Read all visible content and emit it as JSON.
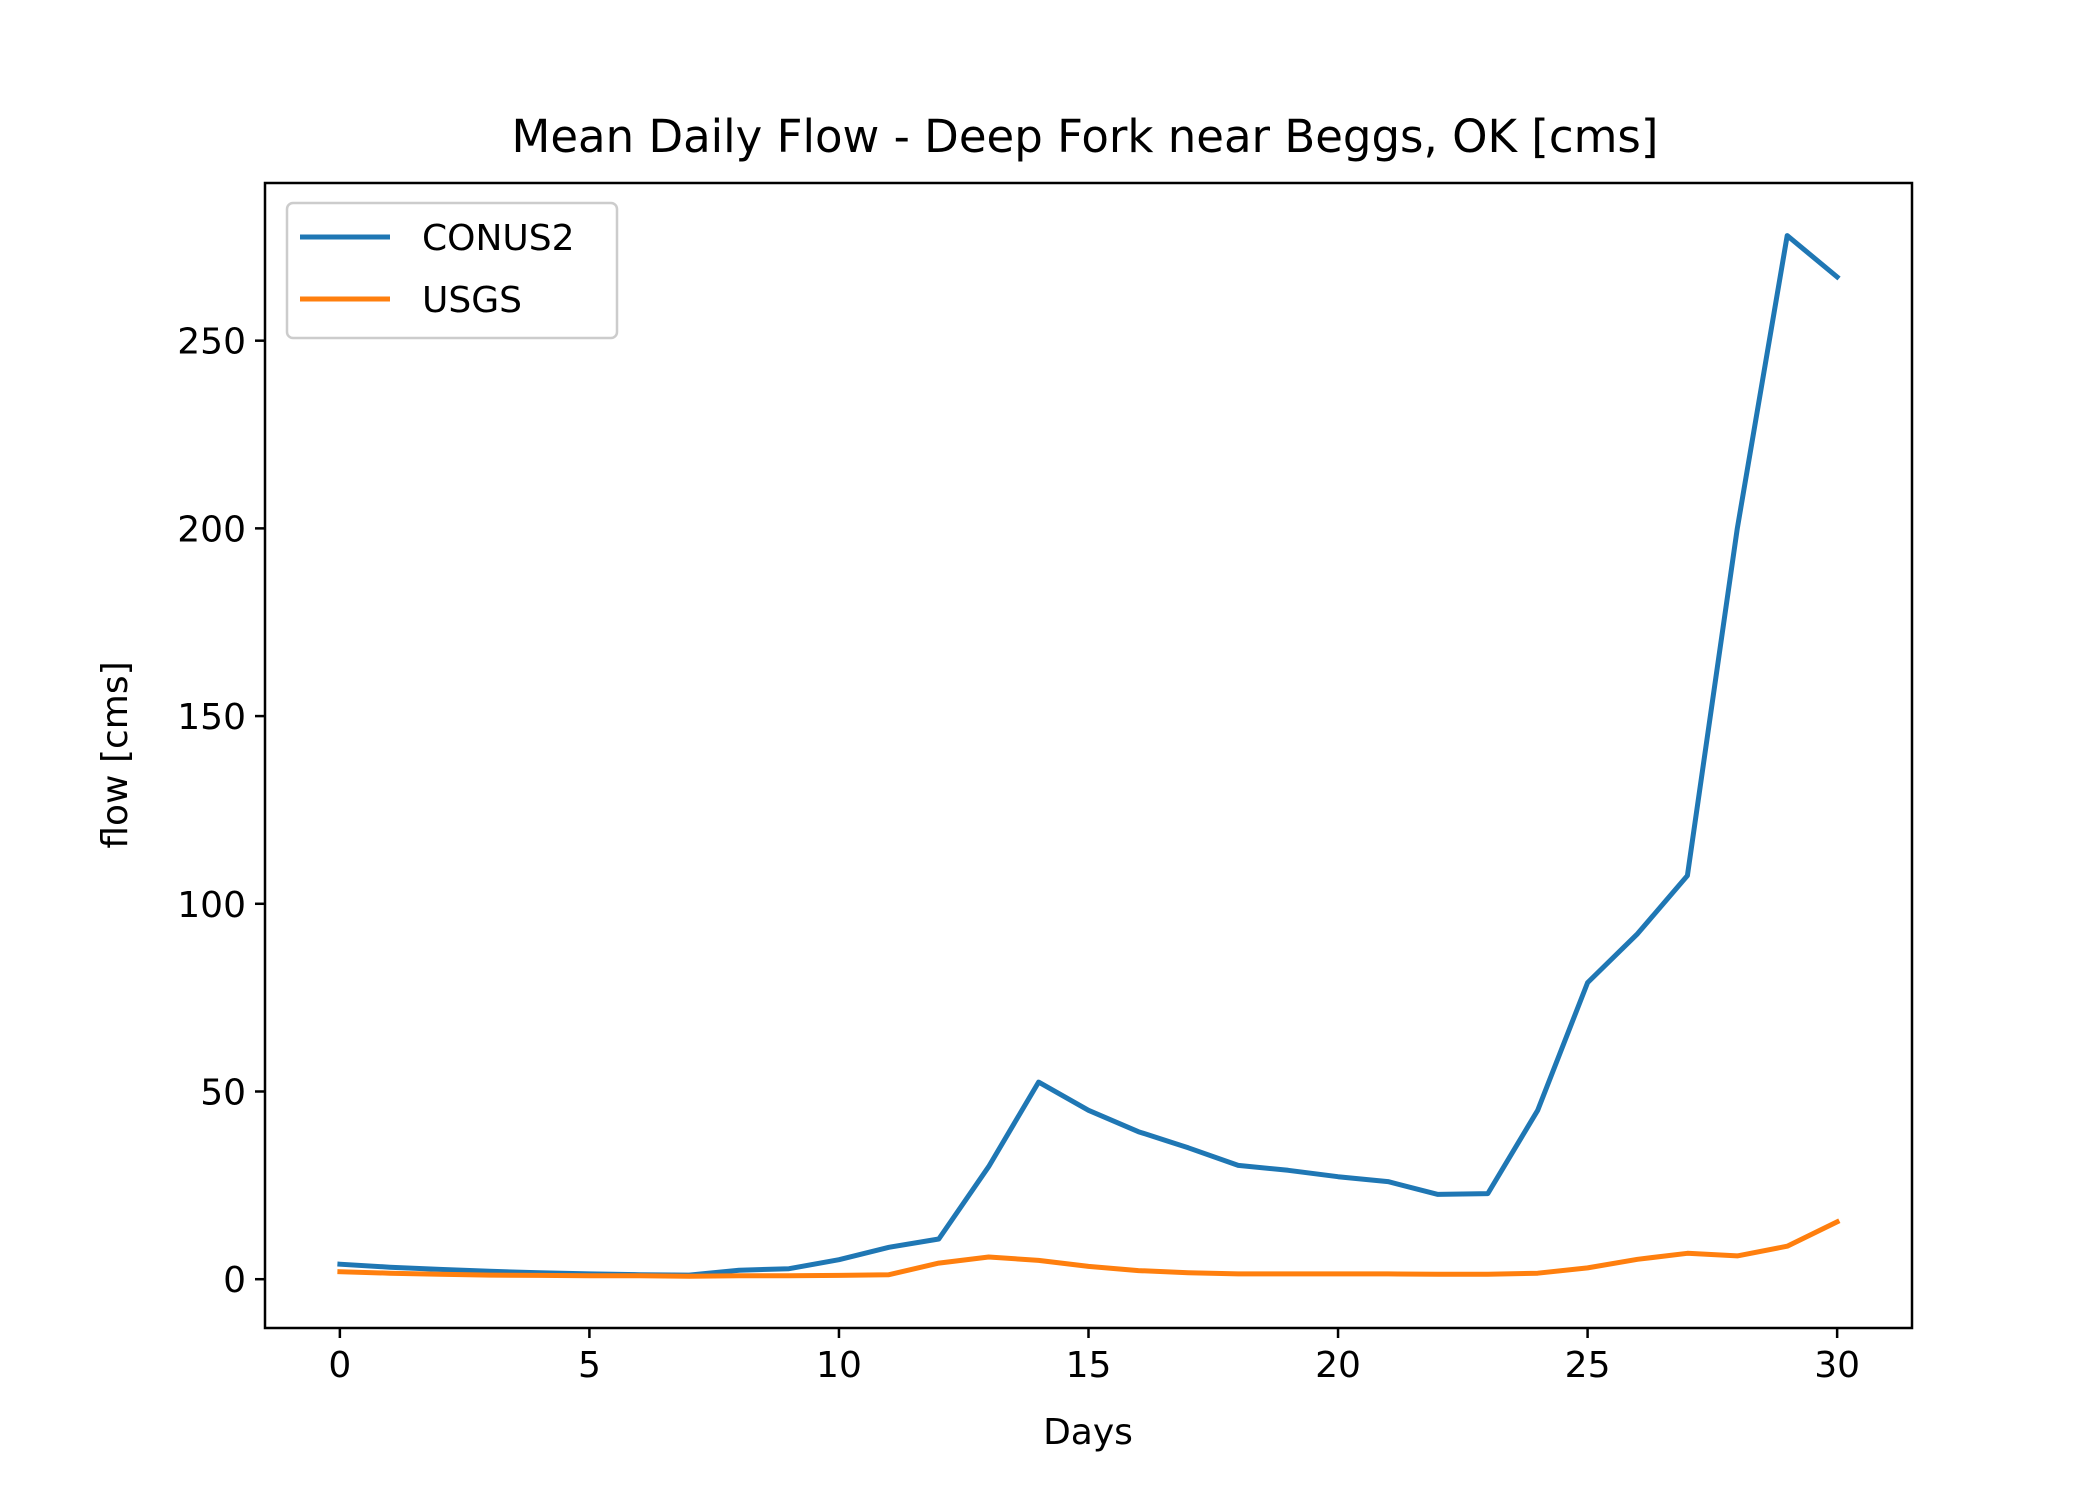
{
  "chart_data": {
    "type": "line",
    "title": "Mean Daily Flow - Deep Fork near Beggs, OK [cms]",
    "xlabel": "Days",
    "ylabel": "flow [cms]",
    "xlim": [
      -1.5,
      31.5
    ],
    "ylim": [
      -13,
      292
    ],
    "xticks": [
      0,
      5,
      10,
      15,
      20,
      25,
      30
    ],
    "yticks": [
      0,
      50,
      100,
      150,
      200,
      250
    ],
    "grid": false,
    "legend_position": "top-left",
    "x": [
      0,
      1,
      2,
      3,
      4,
      5,
      6,
      7,
      8,
      9,
      10,
      11,
      12,
      13,
      14,
      15,
      16,
      17,
      18,
      19,
      20,
      21,
      22,
      23,
      24,
      25,
      26,
      27,
      28,
      29,
      30
    ],
    "series": [
      {
        "name": "CONUS2",
        "color": "#1f77b4",
        "values": [
          4.0,
          3.2,
          2.6,
          2.1,
          1.7,
          1.4,
          1.2,
          1.1,
          2.4,
          2.8,
          5.2,
          8.5,
          10.7,
          30.0,
          52.5,
          45.0,
          39.3,
          35.0,
          30.3,
          29.0,
          27.3,
          26.0,
          22.6,
          22.8,
          45.0,
          79.0,
          92.0,
          107.5,
          200.0,
          278.0,
          267.0
        ]
      },
      {
        "name": "USGS",
        "color": "#ff7f0e",
        "values": [
          2.0,
          1.6,
          1.3,
          1.1,
          1.0,
          0.9,
          0.9,
          0.8,
          0.9,
          0.9,
          1.0,
          1.2,
          4.3,
          5.9,
          5.0,
          3.4,
          2.3,
          1.7,
          1.4,
          1.4,
          1.4,
          1.4,
          1.3,
          1.3,
          1.6,
          3.0,
          5.3,
          6.9,
          6.2,
          8.8,
          15.3
        ]
      }
    ]
  }
}
